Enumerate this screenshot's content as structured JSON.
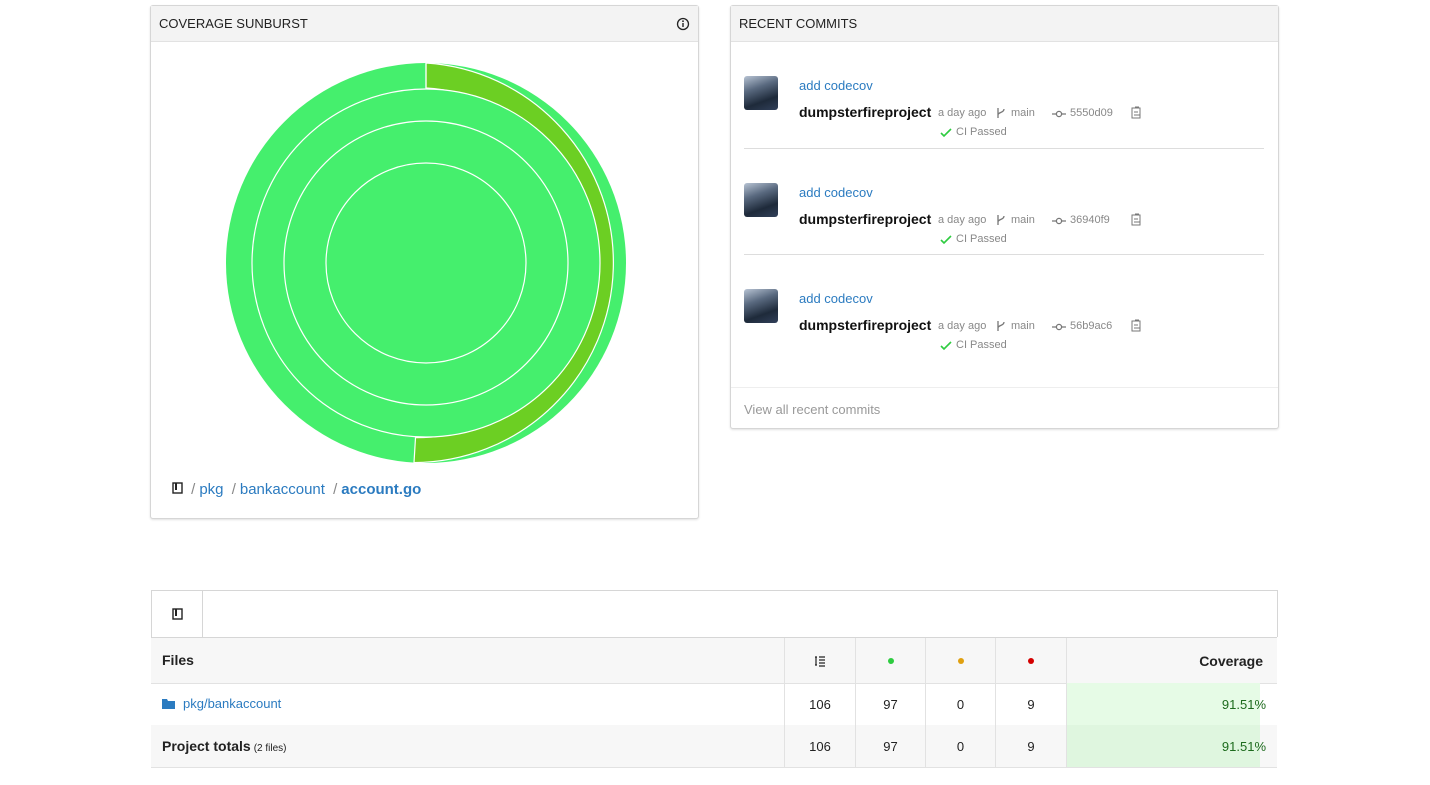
{
  "sunburst": {
    "title": "COVERAGE SUNBURST",
    "separator": "/",
    "breadcrumb": [
      "pkg",
      "bankaccount",
      "account.go"
    ]
  },
  "commits": {
    "title": "RECENT COMMITS",
    "items": [
      {
        "message": "add codecov",
        "author": "dumpsterfireproject",
        "time": "a day ago",
        "branch": "main",
        "sha": "5550d09",
        "status": "CI Passed"
      },
      {
        "message": "add codecov",
        "author": "dumpsterfireproject",
        "time": "a day ago",
        "branch": "main",
        "sha": "36940f9",
        "status": "CI Passed"
      },
      {
        "message": "add codecov",
        "author": "dumpsterfireproject",
        "time": "a day ago",
        "branch": "main",
        "sha": "56b9ac6",
        "status": "CI Passed"
      }
    ],
    "footer": "View all recent commits"
  },
  "table": {
    "headers": {
      "files": "Files",
      "coverage": "Coverage"
    },
    "rows": [
      {
        "name": "pkg/bankaccount",
        "lines": 106,
        "hits": 97,
        "partials": 0,
        "misses": 9,
        "coverage": {
          "value": 91.51,
          "label": "91.51%"
        }
      }
    ],
    "totals": {
      "name": "Project totals",
      "note": "(2 files)",
      "lines": 106,
      "hits": 97,
      "partials": 0,
      "misses": 9,
      "coverage": {
        "value": 91.51,
        "label": "91.51%"
      }
    }
  }
}
